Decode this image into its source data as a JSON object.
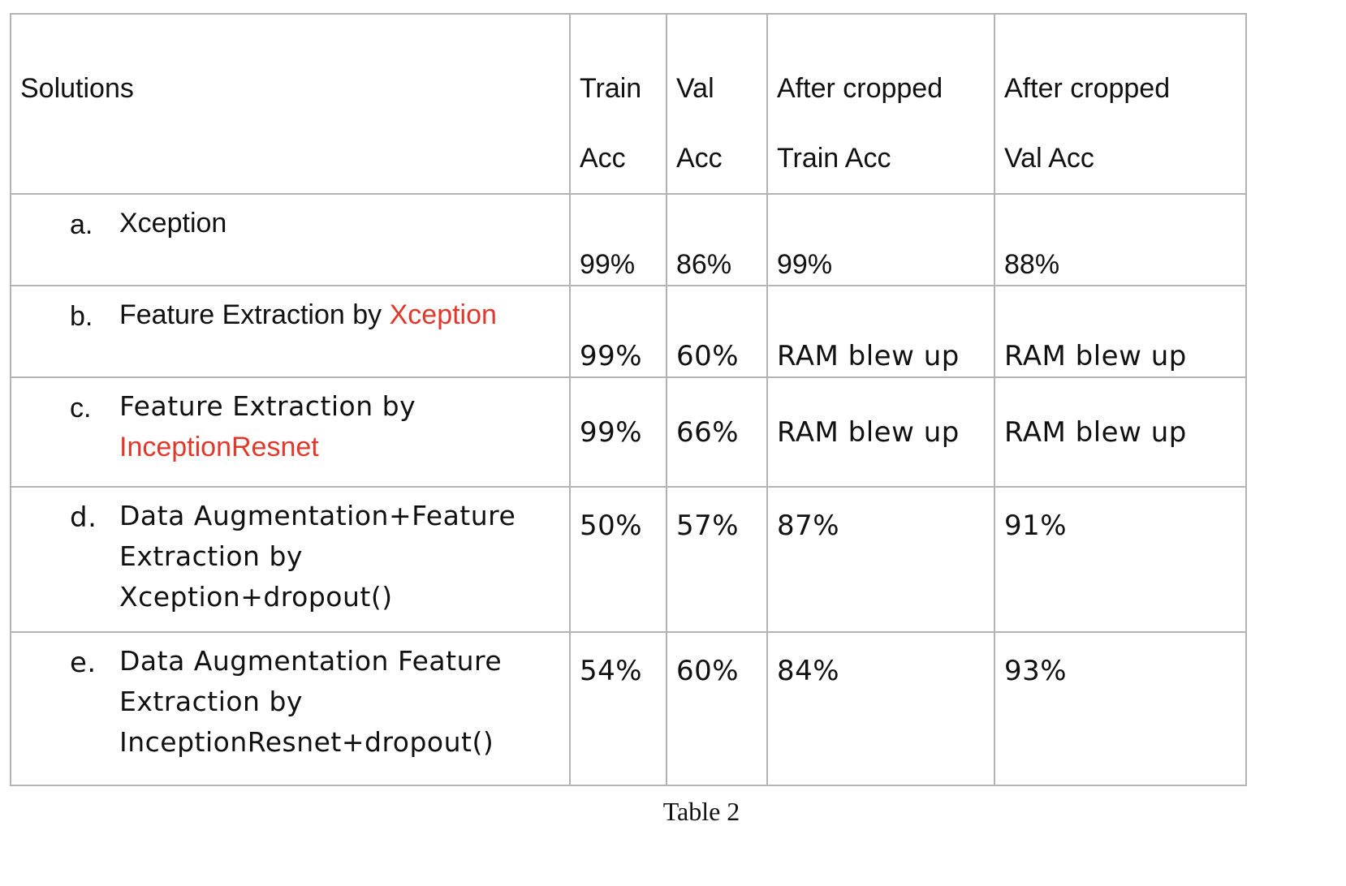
{
  "table": {
    "headers": {
      "solutions": "Solutions",
      "train_acc": [
        "Train",
        "Acc"
      ],
      "val_acc": [
        "Val",
        "Acc"
      ],
      "cropped_train": [
        "After cropped",
        "Train Acc"
      ],
      "cropped_val": [
        "After cropped",
        "Val Acc"
      ]
    },
    "rows": [
      {
        "marker": "a.",
        "parts": [
          {
            "text": "Xception",
            "color": "#111111"
          }
        ],
        "train": "99%",
        "val": "86%",
        "crop_train": "99%",
        "crop_val": "88%"
      },
      {
        "marker": "b.",
        "parts": [
          {
            "text": "Feature Extraction by ",
            "color": "#111111"
          },
          {
            "text": "Xception",
            "color": "#e0392b"
          }
        ],
        "train": "99%",
        "val": "60%",
        "crop_train": "RAM blew up",
        "crop_val": "RAM blew up"
      },
      {
        "marker": "c.",
        "parts": [
          {
            "text": "Feature Extraction by",
            "color": "#111111"
          },
          {
            "text": "InceptionResnet",
            "color": "#e0392b"
          }
        ],
        "train": "99%",
        "val": "66%",
        "crop_train": "RAM blew up",
        "crop_val": "RAM blew up"
      },
      {
        "marker": "d.",
        "lines": [
          "Data Augmentation+Feature",
          "Extraction by",
          "Xception+dropout()"
        ],
        "train": "50%",
        "val": "57%",
        "crop_train": "87%",
        "crop_val": "91%"
      },
      {
        "marker": "e.",
        "lines": [
          "Data Augmentation Feature",
          "Extraction by",
          "InceptionResnet+dropout()"
        ],
        "train": "54%",
        "val": "60%",
        "crop_train": "84%",
        "crop_val": "93%"
      }
    ]
  },
  "caption": "Table 2",
  "colors": {
    "highlight": "#e0392b",
    "grid": "#b3b3b3",
    "text": "#111111"
  }
}
